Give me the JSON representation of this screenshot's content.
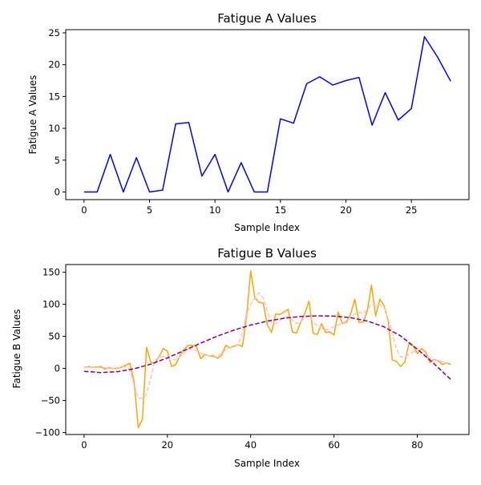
{
  "chart_data": [
    {
      "type": "line",
      "title": "Fatigue A Values",
      "xlabel": "Sample Index",
      "ylabel": "Fatigue A Values",
      "xlim": [
        -1.4,
        29.4
      ],
      "ylim": [
        -1.2,
        25.5
      ],
      "xticks": [
        0,
        5,
        10,
        15,
        20,
        25
      ],
      "yticks": [
        0,
        5,
        10,
        15,
        20,
        25
      ],
      "grid": false,
      "series": [
        {
          "color": "#0000ff",
          "style": "solid",
          "x": [
            0,
            1,
            2,
            3,
            4,
            5,
            6,
            7,
            8,
            9,
            10,
            11,
            12,
            13,
            14,
            15,
            16,
            17,
            18,
            19,
            20,
            21,
            22,
            23,
            24,
            25,
            26,
            27,
            28
          ],
          "values": [
            0,
            0,
            5.9,
            0,
            5.4,
            0,
            0.3,
            10.7,
            10.9,
            2.5,
            5.9,
            0,
            4.6,
            0,
            0,
            11.5,
            10.8,
            17.0,
            18.1,
            16.8,
            17.5,
            18.0,
            10.5,
            15.6,
            11.3,
            13.1,
            24.4,
            21.2,
            17.4
          ]
        }
      ]
    },
    {
      "type": "line",
      "title": "Fatigue B Values",
      "xlabel": "Sample Index",
      "ylabel": "Fatigue B Values",
      "xlim": [
        -4.4,
        92.4
      ],
      "ylim": [
        -103,
        162
      ],
      "xticks": [
        0,
        20,
        40,
        60,
        80
      ],
      "yticks": [
        -100,
        -50,
        0,
        50,
        100,
        150
      ],
      "grid": false,
      "series": [
        {
          "color": "#ffa500",
          "style": "solid",
          "x": [
            0,
            1,
            2,
            3,
            4,
            5,
            6,
            7,
            8,
            9,
            10,
            11,
            12,
            13,
            14,
            15,
            16,
            17,
            18,
            19,
            20,
            21,
            22,
            23,
            24,
            25,
            26,
            27,
            28,
            29,
            30,
            31,
            32,
            33,
            34,
            35,
            36,
            37,
            38,
            39,
            40,
            41,
            42,
            43,
            44,
            45,
            46,
            47,
            48,
            49,
            50,
            51,
            52,
            53,
            54,
            55,
            56,
            57,
            58,
            59,
            60,
            61,
            62,
            63,
            64,
            65,
            66,
            67,
            68,
            69,
            70,
            71,
            72,
            73,
            74,
            75,
            76,
            77,
            78,
            79,
            80,
            81,
            82,
            83,
            84,
            85,
            86,
            87,
            88
          ],
          "values": [
            1,
            3,
            2,
            2,
            3,
            -1,
            1,
            0,
            0,
            2,
            5,
            8,
            -20,
            -92,
            -80,
            33,
            10,
            8,
            18,
            31,
            27,
            3,
            6,
            20,
            30,
            36,
            36,
            34,
            15,
            22,
            19,
            20,
            16,
            20,
            36,
            32,
            35,
            37,
            34,
            80,
            152,
            110,
            103,
            102,
            68,
            56,
            85,
            84,
            88,
            92,
            57,
            55,
            72,
            86,
            105,
            55,
            53,
            70,
            56,
            57,
            52,
            88,
            70,
            72,
            85,
            108,
            72,
            72,
            90,
            130,
            82,
            108,
            98,
            75,
            13,
            11,
            3,
            10,
            39,
            35,
            23,
            31,
            26,
            9,
            14,
            12,
            6,
            9,
            6
          ]
        },
        {
          "color": "#ffc0cb",
          "style": "dashed",
          "x": [
            0,
            1,
            2,
            3,
            4,
            5,
            6,
            7,
            8,
            9,
            10,
            11,
            12,
            13,
            14,
            15,
            16,
            17,
            18,
            19,
            20,
            21,
            22,
            23,
            24,
            25,
            26,
            27,
            28,
            29,
            30,
            31,
            32,
            33,
            34,
            35,
            36,
            37,
            38,
            39,
            40,
            41,
            42,
            43,
            44,
            45,
            46,
            47,
            48,
            49,
            50,
            51,
            52,
            53,
            54,
            55,
            56,
            57,
            58,
            59,
            60,
            61,
            62,
            63,
            64,
            65,
            66,
            67,
            68,
            69,
            70,
            71,
            72,
            73,
            74,
            75,
            76,
            77,
            78,
            79,
            80,
            81,
            82,
            83,
            84,
            85,
            86,
            87,
            88
          ],
          "values": [
            2,
            2,
            2,
            2,
            1,
            1,
            0,
            0,
            1,
            2,
            3,
            -2,
            -25,
            -46,
            -47,
            -40,
            -15,
            12,
            18,
            19,
            16,
            13,
            14,
            18,
            24,
            30,
            30,
            28,
            24,
            21,
            19,
            18,
            19,
            23,
            29,
            32,
            33,
            38,
            55,
            85,
            100,
            110,
            118,
            110,
            90,
            70,
            70,
            75,
            80,
            80,
            75,
            70,
            72,
            80,
            82,
            73,
            66,
            63,
            60,
            62,
            65,
            68,
            70,
            74,
            80,
            85,
            88,
            85,
            92,
            100,
            97,
            100,
            95,
            78,
            55,
            30,
            18,
            18,
            22,
            26,
            28,
            25,
            20,
            16,
            13,
            12,
            10,
            9,
            8
          ]
        },
        {
          "color": "#800080",
          "style": "dashed",
          "x": [
            0,
            4,
            8,
            12,
            16,
            20,
            24,
            28,
            32,
            36,
            40,
            44,
            48,
            52,
            56,
            60,
            64,
            68,
            72,
            76,
            80,
            84,
            88
          ],
          "values": [
            -4.5,
            -6.4,
            -5.1,
            -0.6,
            6.7,
            16.5,
            27.8,
            39.4,
            50.4,
            59.8,
            67.6,
            73.8,
            78.3,
            81.0,
            82.0,
            81.6,
            79.1,
            73.9,
            64.9,
            50.7,
            30.1,
            7.5,
            -17.0
          ]
        }
      ]
    }
  ]
}
